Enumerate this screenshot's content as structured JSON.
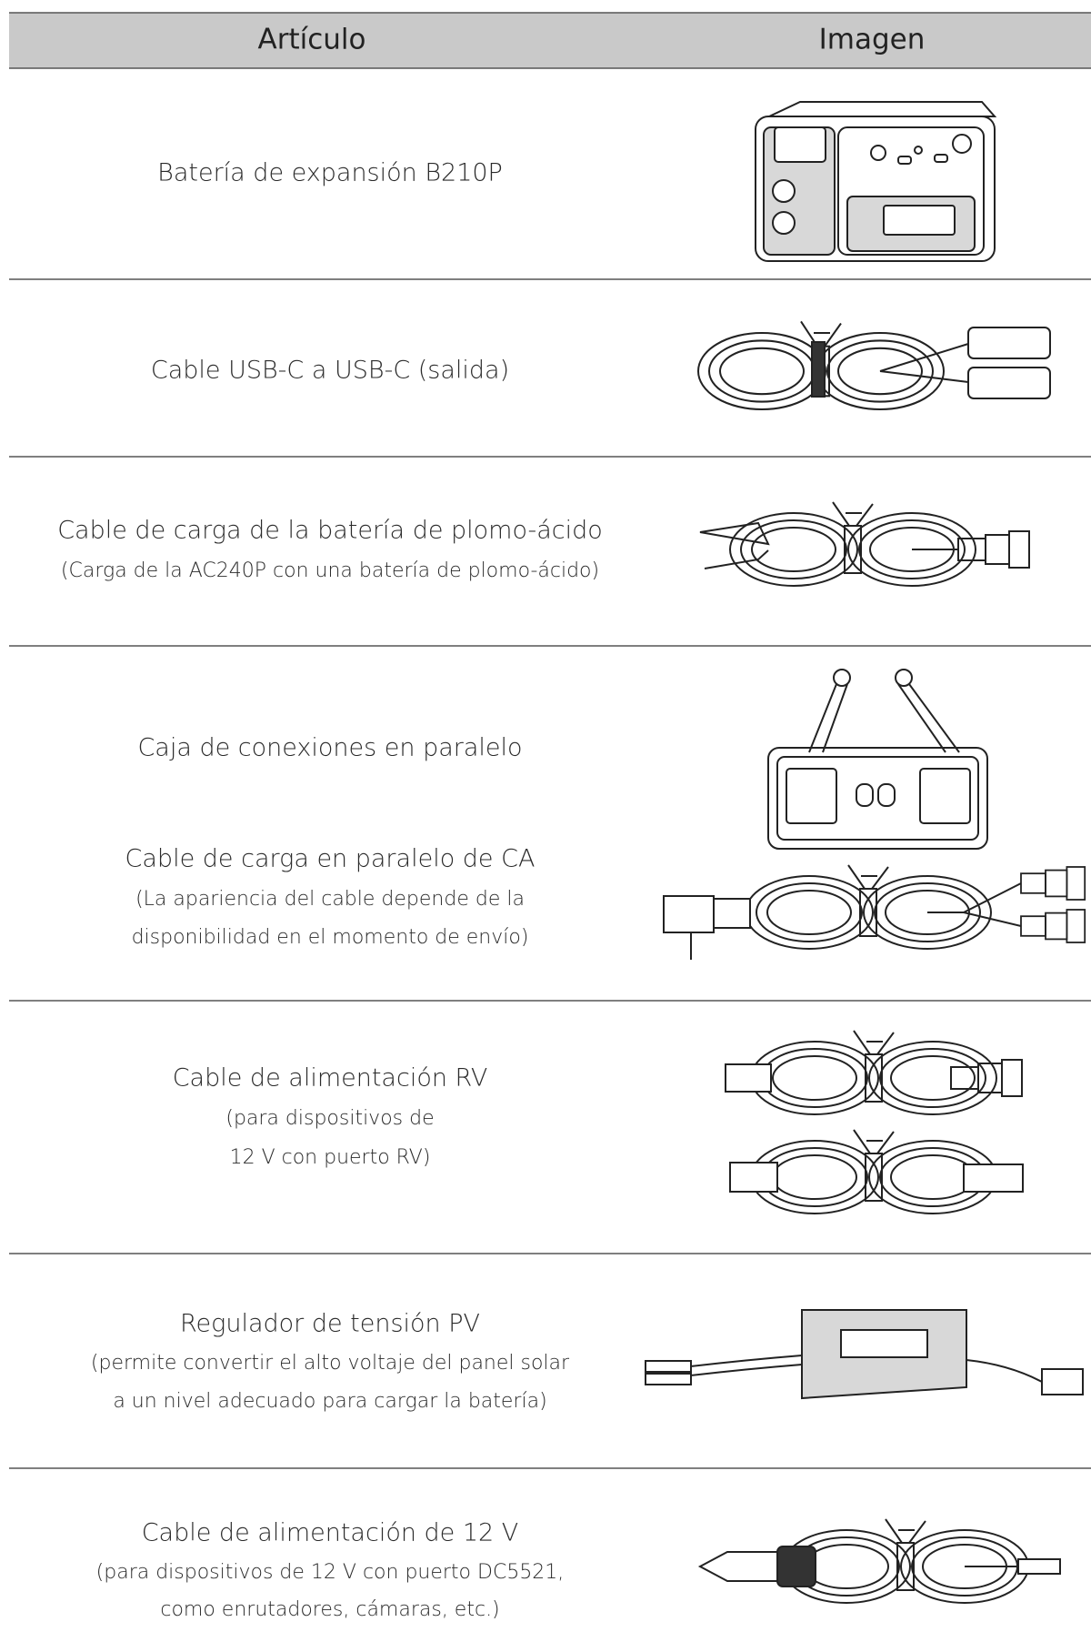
{
  "header": {
    "columns": [
      "Artículo",
      "Imagen"
    ]
  },
  "rows": [
    [
      "Batería de expansión B210P"
    ],
    [
      "Cable USB-C a USB-C (salida)"
    ],
    [
      "Cable de carga de la batería de plomo-ácido",
      "(Carga de la AC240P con una batería de plomo-ácido)"
    ],
    [
      "Caja de conexiones en paralelo",
      "Cable de carga en paralelo de CA",
      "(La apariencia del cable depende de la",
      "disponibilidad en el momento de envío)"
    ],
    [
      "Cable de alimentación RV",
      "(para dispositivos de",
      "12 V con puerto RV)"
    ],
    [
      "Regulador de tensión PV",
      "(permite convertir el alto voltaje del panel solar",
      "a un nivel adecuado para cargar la batería)"
    ],
    [
      "Cable de alimentación de 12 V",
      "(para dispositivos de 12 V con puerto DC5521,",
      "como enrutadores, cámaras, etc.)"
    ]
  ]
}
